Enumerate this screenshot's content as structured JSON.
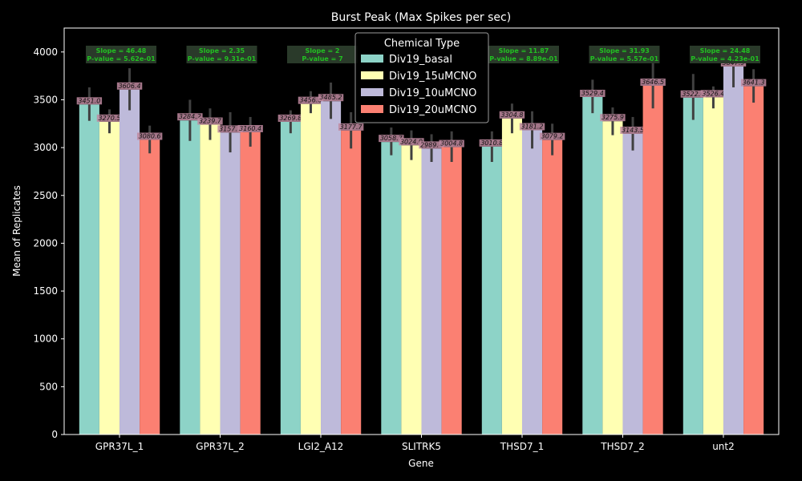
{
  "chart_data": {
    "type": "bar",
    "title": "Burst Peak (Max Spikes per sec)",
    "xlabel": "Gene",
    "ylabel": "Mean of Replicates",
    "ylim": [
      0,
      4250
    ],
    "yticks": [
      0,
      500,
      1000,
      1500,
      2000,
      2500,
      3000,
      3500,
      4000
    ],
    "grid": false,
    "legend": {
      "title": "Chemical Type",
      "placement": "top-center"
    },
    "categories": [
      "GPR37L_1",
      "GPR37L_2",
      "LGI2_A12",
      "SLITRK5",
      "THSD7_1",
      "THSD7_2",
      "unt2"
    ],
    "series": [
      {
        "name": "Div19_basal",
        "color": "#8dd3c7",
        "values": [
          3451.0,
          3284.2,
          3269.8,
          3058.7,
          3010.8,
          3529.4,
          3522.6
        ],
        "labels": [
          "3451.0",
          "3284.2",
          "3269.8",
          "3058.7",
          "3010.8",
          "3529.4",
          "3522.6"
        ],
        "err_low": [
          3280,
          3070,
          3150,
          2920,
          2850,
          3360,
          3290
        ],
        "err_high": [
          3630,
          3500,
          3390,
          3210,
          3170,
          3710,
          3770
        ]
      },
      {
        "name": "Div19_15uMCNO",
        "color": "#ffffb3",
        "values": [
          3270.5,
          3239.7,
          3456.6,
          3024.0,
          3304.8,
          3275.9,
          3526.4
        ],
        "labels": [
          "3270.5",
          "3239.7",
          "3456.6",
          "3024.0",
          "3304.8",
          "3275.9",
          "3526.4"
        ],
        "err_low": [
          3150,
          3080,
          3360,
          2870,
          3150,
          3130,
          3410
        ],
        "err_high": [
          3400,
          3410,
          3590,
          3180,
          3460,
          3420,
          3640
        ]
      },
      {
        "name": "Div19_10uMCNO",
        "color": "#bebada",
        "values": [
          3606.4,
          3157.1,
          3485.2,
          2989.4,
          3181.2,
          3143.5,
          3847.9
        ],
        "labels": [
          "3606.4",
          "3157.1",
          "3485.2",
          "2989.4",
          "3181.2",
          "3143.5",
          "3847.9"
        ],
        "err_low": [
          3390,
          2950,
          3300,
          2850,
          2990,
          2970,
          3630
        ],
        "err_high": [
          3830,
          3370,
          3680,
          3140,
          3380,
          3320,
          4060
        ]
      },
      {
        "name": "Div19_20uMCNO",
        "color": "#fb8072",
        "values": [
          3080.6,
          3160.4,
          3177.7,
          3004.8,
          3079.2,
          3646.5,
          3641.3
        ],
        "labels": [
          "3080.6",
          "3160.4",
          "3177.7",
          "3004.8",
          "3079.2",
          "3646.5",
          "3641.3"
        ],
        "err_low": [
          2940,
          3010,
          2990,
          2850,
          2920,
          3410,
          3470
        ],
        "err_high": [
          3230,
          3320,
          3370,
          3170,
          3250,
          3890,
          3820
        ]
      }
    ],
    "annotations": [
      {
        "line1": "Slope = 46.48",
        "line2": "P-value = 5.62e-01"
      },
      {
        "line1": "Slope = 2.35",
        "line2": "P-value = 9.31e-01"
      },
      {
        "line1": "Slope = 2",
        "line2": "P-value = 7"
      },
      {
        "line1": "",
        "line2": ""
      },
      {
        "line1": "Slope = 11.87",
        "line2": "P-value = 8.89e-01"
      },
      {
        "line1": "Slope = 31.93",
        "line2": "P-value = 5.57e-01"
      },
      {
        "line1": "Slope = 24.48",
        "line2": "P-value = 4.23e-01"
      }
    ]
  }
}
